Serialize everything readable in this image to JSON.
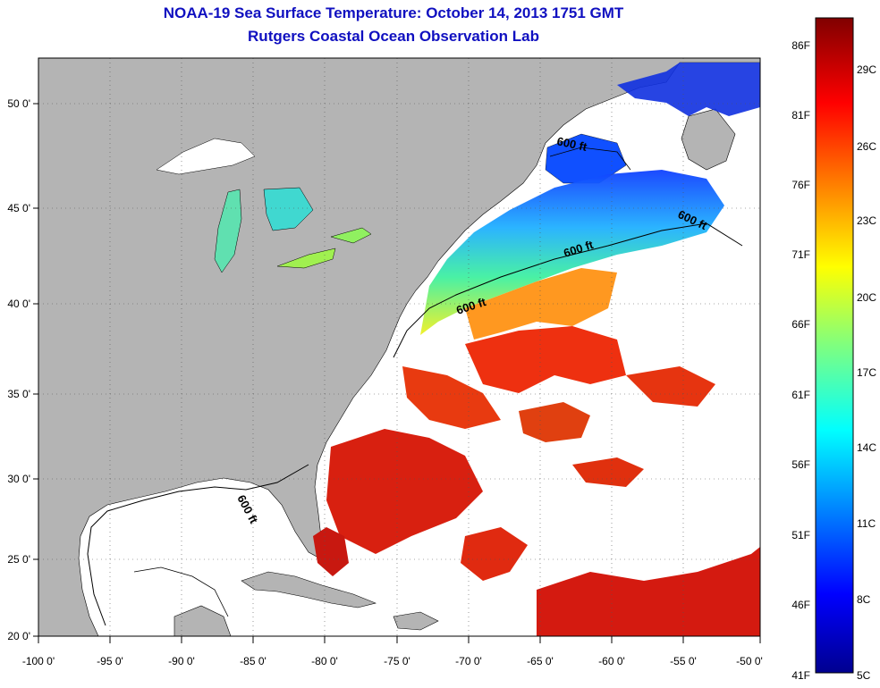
{
  "title": {
    "line1": "NOAA-19 Sea Surface Temperature:  October 14, 2013 1751 GMT",
    "line2": "Rutgers Coastal Ocean Observation Lab"
  },
  "axes": {
    "lon_ticks": [
      "-100 0'",
      "-95 0'",
      "-90 0'",
      "-85 0'",
      "-80 0'",
      "-75 0'",
      "-70 0'",
      "-65 0'",
      "-60 0'",
      "-55 0'",
      "-50 0'"
    ],
    "lat_ticks": [
      "50 0'",
      "45 0'",
      "40 0'",
      "35 0'",
      "30 0'",
      "25 0'",
      "20 0'"
    ]
  },
  "contour_label": "600 ft",
  "colorbar": {
    "fahrenheit": [
      "86F",
      "81F",
      "76F",
      "71F",
      "66F",
      "61F",
      "56F",
      "51F",
      "46F",
      "41F"
    ],
    "celsius": [
      "29C",
      "26C",
      "23C",
      "20C",
      "17C",
      "14C",
      "11C",
      "8C",
      "5C"
    ]
  },
  "colors": {
    "land": "#b4b4b4",
    "cloud": "#ffffff",
    "title": "#1010c0"
  }
}
